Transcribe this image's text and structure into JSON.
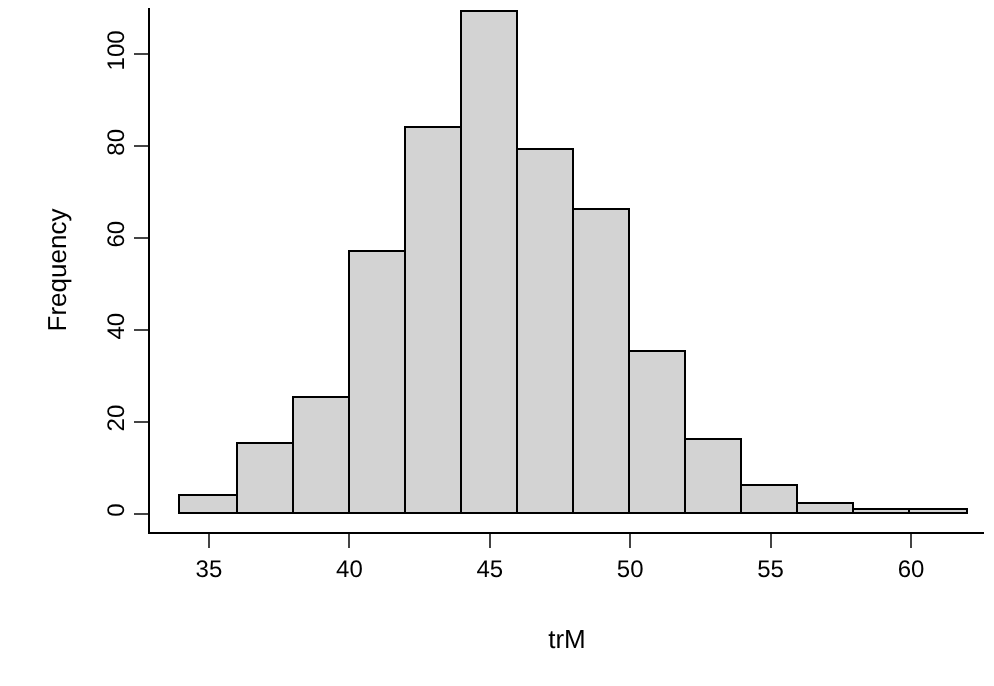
{
  "chart_data": {
    "type": "histogram",
    "xlabel": "trM",
    "ylabel": "Frequency",
    "bins": [
      34,
      36,
      38,
      40,
      42,
      44,
      46,
      48,
      50,
      52,
      54,
      56,
      58,
      60,
      62
    ],
    "values": [
      4,
      15,
      25,
      57,
      84,
      109,
      79,
      66,
      35,
      16,
      6,
      2,
      1,
      1
    ],
    "color": "#d3d3d3",
    "xlim": [
      32.9,
      62.6
    ],
    "ylim": [
      -4,
      110
    ],
    "xticks": [
      35,
      40,
      45,
      50,
      55,
      60
    ],
    "yticks": [
      0,
      20,
      40,
      60,
      80,
      100
    ]
  }
}
